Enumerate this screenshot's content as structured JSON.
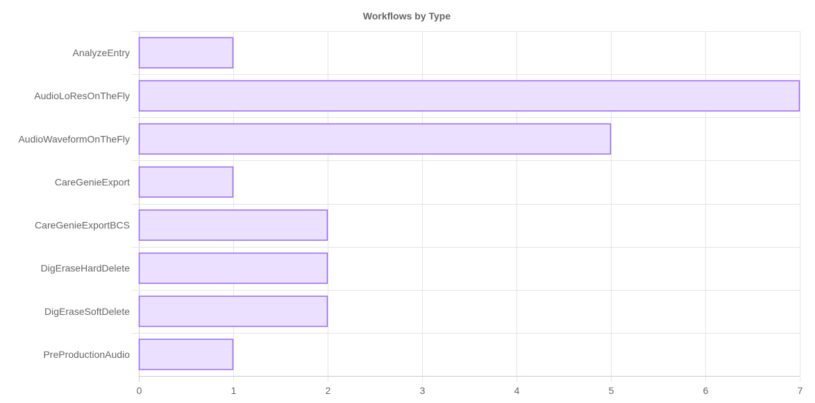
{
  "chart_data": {
    "type": "bar",
    "orientation": "horizontal",
    "title": "Workflows by Type",
    "categories": [
      "AnalyzeEntry",
      "AudioLoResOnTheFly",
      "AudioWaveformOnTheFly",
      "CareGenieExport",
      "CareGenieExportBCS",
      "DigEraseHardDelete",
      "DigEraseSoftDelete",
      "PreProductionAudio"
    ],
    "values": [
      1,
      7,
      5,
      1,
      2,
      2,
      2,
      1
    ],
    "xlim": [
      0,
      7
    ],
    "xticks": [
      "0",
      "1",
      "2",
      "3",
      "4",
      "5",
      "6",
      "7"
    ],
    "xlabel": "",
    "ylabel": "",
    "grid": true,
    "legend": "none",
    "colors": {
      "bar_fill": "#ebe0ff",
      "bar_border": "#9966ff",
      "grid": "#e5e5e5",
      "text": "#666666"
    }
  }
}
